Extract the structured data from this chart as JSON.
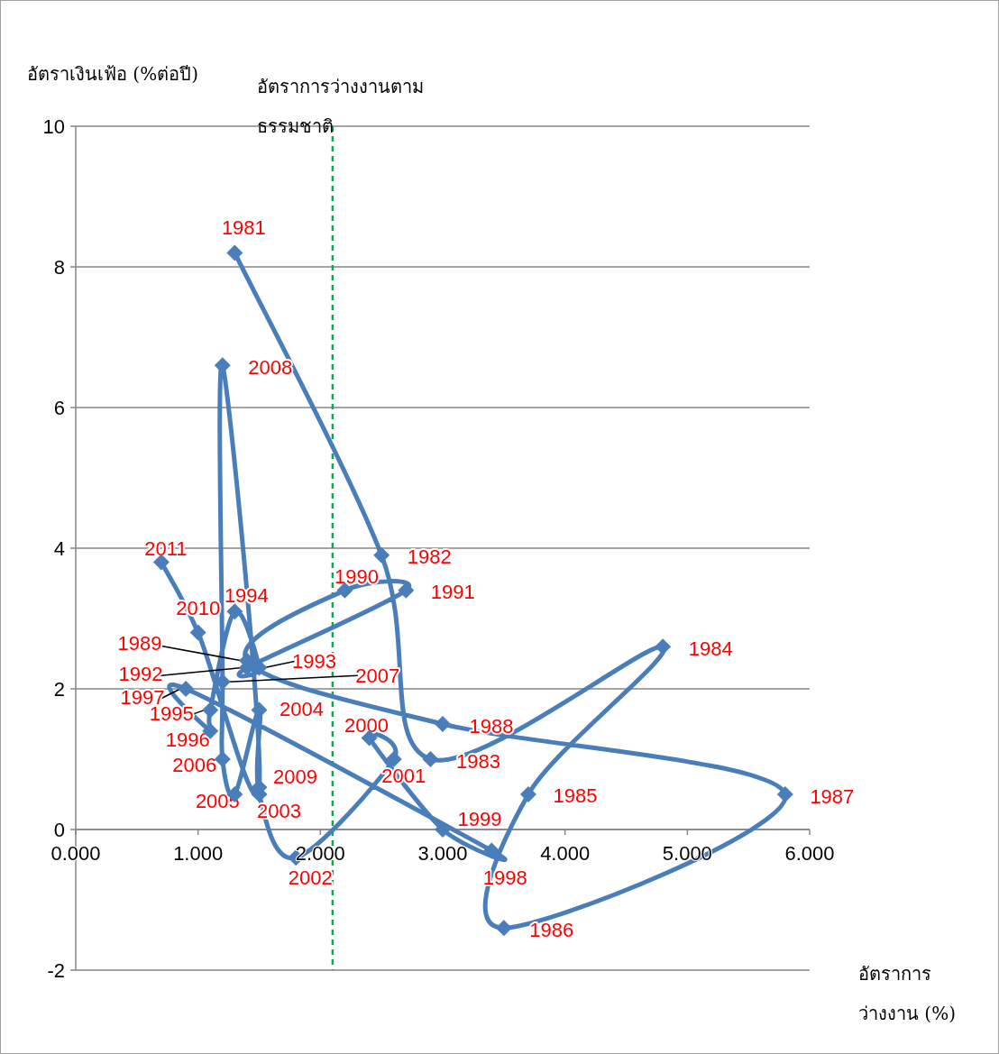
{
  "chart_data": {
    "type": "line",
    "ylabel": "อัตราเงินเฟ้อ (%ต่อปี)",
    "xlabel": "อัตราการว่างงาน (%)",
    "xlim": [
      0,
      6
    ],
    "xticks": [
      {
        "value": 0,
        "label": "0.000"
      },
      {
        "value": 1,
        "label": "1.000"
      },
      {
        "value": 2,
        "label": "2.000"
      },
      {
        "value": 3,
        "label": "3.000"
      },
      {
        "value": 4,
        "label": "4.000"
      },
      {
        "value": 5,
        "label": "5.000"
      },
      {
        "value": 6,
        "label": "6.000"
      }
    ],
    "ylim": [
      -2,
      10
    ],
    "yticks": [
      -2,
      0,
      2,
      4,
      6,
      8,
      10
    ],
    "grid": "y",
    "marker": "diamond",
    "line_style": "solid",
    "series": [
      {
        "color": "#4a7ebb",
        "x": [
          1.3,
          2.5,
          2.9,
          4.8,
          3.7,
          3.5,
          5.8,
          3.0,
          1.4,
          2.2,
          2.7,
          1.4,
          1.5,
          1.3,
          1.1,
          1.1,
          0.9,
          3.4,
          3.0,
          2.4,
          2.6,
          1.8,
          1.5,
          1.5,
          1.3,
          1.2,
          1.2,
          1.2,
          1.5,
          1.0,
          0.7
        ],
        "values": [
          8.2,
          3.9,
          1.0,
          2.6,
          0.5,
          -1.4,
          0.5,
          1.5,
          2.4,
          3.4,
          3.4,
          2.3,
          2.3,
          3.1,
          1.7,
          1.4,
          2.0,
          -0.3,
          0.0,
          1.3,
          1.0,
          -0.4,
          0.5,
          1.7,
          0.5,
          1.0,
          2.1,
          6.6,
          0.6,
          2.8,
          3.8
        ]
      }
    ],
    "ref_lines": [
      {
        "axis": "x",
        "value": 2.1,
        "label": "อัตราการว่างงานตามธรรมชาติ",
        "color": "#00b050",
        "line_style": "dashed"
      }
    ],
    "annotations": [
      {
        "text": "1981",
        "x": 1.3,
        "y": 8.2
      },
      {
        "text": "1982",
        "x": 2.5,
        "y": 3.9
      },
      {
        "text": "1983",
        "x": 2.9,
        "y": 1.0
      },
      {
        "text": "1984",
        "x": 4.8,
        "y": 2.6
      },
      {
        "text": "1985",
        "x": 3.7,
        "y": 0.5
      },
      {
        "text": "1986",
        "x": 3.5,
        "y": -1.4
      },
      {
        "text": "1987",
        "x": 5.8,
        "y": 0.5
      },
      {
        "text": "1988",
        "x": 3.0,
        "y": 1.5
      },
      {
        "text": "1989",
        "x": 1.4,
        "y": 2.4
      },
      {
        "text": "1990",
        "x": 2.2,
        "y": 3.4
      },
      {
        "text": "1991",
        "x": 2.7,
        "y": 3.4
      },
      {
        "text": "1992",
        "x": 1.4,
        "y": 2.3
      },
      {
        "text": "1993",
        "x": 1.5,
        "y": 2.3
      },
      {
        "text": "1994",
        "x": 1.3,
        "y": 3.1
      },
      {
        "text": "1995",
        "x": 1.1,
        "y": 1.7
      },
      {
        "text": "1996",
        "x": 1.1,
        "y": 1.4
      },
      {
        "text": "1997",
        "x": 0.9,
        "y": 2.0
      },
      {
        "text": "1998",
        "x": 3.4,
        "y": -0.3
      },
      {
        "text": "1999",
        "x": 3.0,
        "y": 0.0
      },
      {
        "text": "2000",
        "x": 2.4,
        "y": 1.3
      },
      {
        "text": "2001",
        "x": 2.6,
        "y": 1.0
      },
      {
        "text": "2002",
        "x": 1.8,
        "y": -0.4
      },
      {
        "text": "2003",
        "x": 1.5,
        "y": 0.5
      },
      {
        "text": "2004",
        "x": 1.5,
        "y": 1.7
      },
      {
        "text": "2005",
        "x": 1.3,
        "y": 0.5
      },
      {
        "text": "2006",
        "x": 1.2,
        "y": 1.0
      },
      {
        "text": "2007",
        "x": 1.2,
        "y": 2.1
      },
      {
        "text": "2008",
        "x": 1.2,
        "y": 6.6
      },
      {
        "text": "2009",
        "x": 1.5,
        "y": 0.6
      },
      {
        "text": "2010",
        "x": 1.0,
        "y": 2.8
      },
      {
        "text": "2011",
        "x": 0.7,
        "y": 3.8
      }
    ]
  }
}
